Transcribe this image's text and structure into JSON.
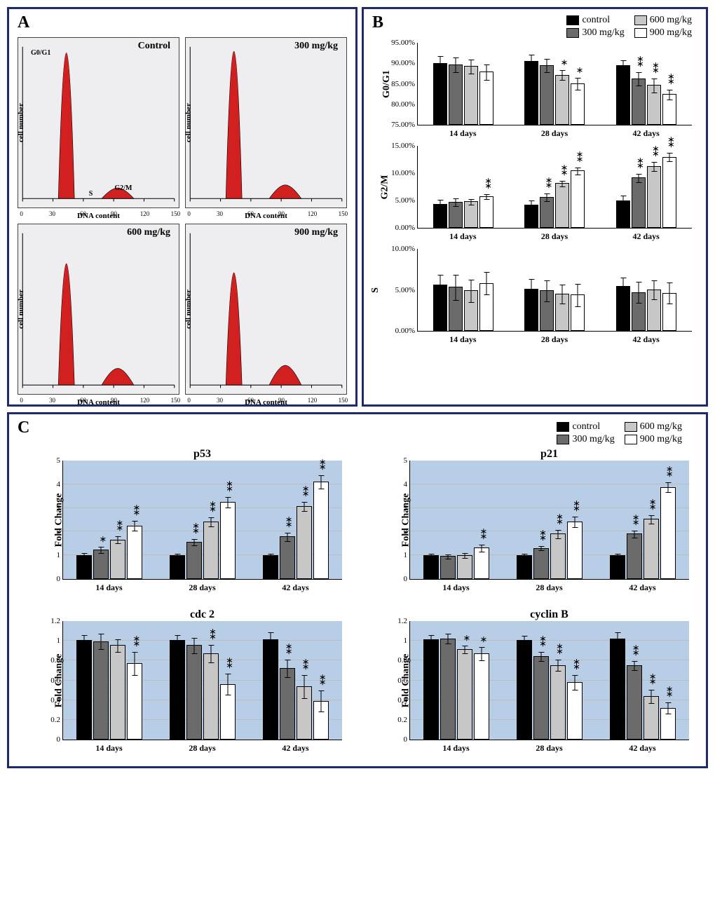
{
  "panelLabels": {
    "A": "A",
    "B": "B",
    "C": "C"
  },
  "colors": {
    "control": "#000000",
    "d300": "#6b6b6b",
    "d600": "#c7c7c7",
    "d900": "#ffffff",
    "panelBorder": "#1f2a6a",
    "histoBg": "#eeeef0",
    "histoFill": "#d22020",
    "blueBg": "#b8cde6",
    "grid": "#bcbcbc"
  },
  "legend": {
    "items": [
      {
        "label": "control",
        "color": "#000000"
      },
      {
        "label": "300 mg/kg",
        "color": "#6b6b6b"
      },
      {
        "label": "600 mg/kg",
        "color": "#c7c7c7"
      },
      {
        "label": "900 mg/kg",
        "color": "#ffffff"
      }
    ]
  },
  "categories": [
    "14 days",
    "28 days",
    "42 days"
  ],
  "histo": {
    "ylabel": "cell number",
    "xlabel": "DNA content",
    "xticks": [
      0,
      30,
      60,
      90,
      120,
      150
    ],
    "peak_labels": {
      "g0g1": "G0/G1",
      "s": "S",
      "g2m": "G2/M"
    },
    "plots": [
      {
        "title": "Control",
        "g0g1_h": 0.96,
        "g2m_h": 0.07
      },
      {
        "title": "300 mg/kg",
        "g0g1_h": 0.97,
        "g2m_h": 0.09
      },
      {
        "title": "600 mg/kg",
        "g0g1_h": 0.8,
        "g2m_h": 0.11
      },
      {
        "title": "900 mg/kg",
        "g0g1_h": 0.74,
        "g2m_h": 0.13
      }
    ]
  },
  "panelB": {
    "charts": [
      {
        "ylabel": "G0/G1",
        "ymin": 75,
        "ymax": 95,
        "ystep": 5,
        "tickFmt": "pct2",
        "series": [
          [
            {
              "v": 90.0,
              "e": 1.8
            },
            {
              "v": 89.6,
              "e": 1.9
            },
            {
              "v": 89.2,
              "e": 1.8
            },
            {
              "v": 87.8,
              "e": 1.9
            }
          ],
          [
            {
              "v": 90.5,
              "e": 1.6
            },
            {
              "v": 89.4,
              "e": 1.7
            },
            {
              "v": 87.1,
              "e": 1.3,
              "sig": "*"
            },
            {
              "v": 85.0,
              "e": 1.6,
              "sig": "*"
            }
          ],
          [
            {
              "v": 89.4,
              "e": 1.4
            },
            {
              "v": 86.2,
              "e": 1.7,
              "sig": "**"
            },
            {
              "v": 84.6,
              "e": 1.8,
              "sig": "**"
            },
            {
              "v": 82.4,
              "e": 1.3,
              "sig": "**"
            }
          ]
        ]
      },
      {
        "ylabel": "G2/M",
        "ymin": 0,
        "ymax": 15,
        "ystep": 5,
        "tickFmt": "pct2",
        "series": [
          [
            {
              "v": 4.3,
              "e": 0.9
            },
            {
              "v": 4.7,
              "e": 0.8
            },
            {
              "v": 4.8,
              "e": 0.6
            },
            {
              "v": 5.7,
              "e": 0.5,
              "sig": "**"
            }
          ],
          [
            {
              "v": 4.2,
              "e": 0.9
            },
            {
              "v": 5.6,
              "e": 0.8,
              "sig": "**"
            },
            {
              "v": 8.1,
              "e": 0.6,
              "sig": "**"
            },
            {
              "v": 10.4,
              "e": 0.7,
              "sig": "**"
            }
          ],
          [
            {
              "v": 5.0,
              "e": 1.0
            },
            {
              "v": 9.1,
              "e": 0.8,
              "sig": "**"
            },
            {
              "v": 11.2,
              "e": 0.9,
              "sig": "**"
            },
            {
              "v": 12.9,
              "e": 0.8,
              "sig": "**"
            }
          ]
        ]
      },
      {
        "ylabel": "S",
        "ymin": 0,
        "ymax": 10,
        "ystep": 5,
        "tickFmt": "pct2",
        "series": [
          [
            {
              "v": 5.6,
              "e": 1.3
            },
            {
              "v": 5.3,
              "e": 1.6
            },
            {
              "v": 4.9,
              "e": 1.4
            },
            {
              "v": 5.8,
              "e": 1.4
            }
          ],
          [
            {
              "v": 5.1,
              "e": 1.3
            },
            {
              "v": 4.9,
              "e": 1.3
            },
            {
              "v": 4.5,
              "e": 1.2
            },
            {
              "v": 4.4,
              "e": 1.4
            }
          ],
          [
            {
              "v": 5.4,
              "e": 1.1
            },
            {
              "v": 4.7,
              "e": 1.3
            },
            {
              "v": 5.0,
              "e": 1.2
            },
            {
              "v": 4.6,
              "e": 1.3
            }
          ]
        ]
      }
    ]
  },
  "panelC": {
    "ylabel": "Fold Change",
    "charts": [
      {
        "title": "p53",
        "ymin": 0,
        "ymax": 5,
        "ystep": 1,
        "series": [
          [
            {
              "v": 1.0,
              "e": 0.12
            },
            {
              "v": 1.24,
              "e": 0.14,
              "sig": "*"
            },
            {
              "v": 1.66,
              "e": 0.15,
              "sig": "**"
            },
            {
              "v": 2.25,
              "e": 0.22,
              "sig": "**"
            }
          ],
          [
            {
              "v": 1.0,
              "e": 0.1
            },
            {
              "v": 1.56,
              "e": 0.16,
              "sig": "**"
            },
            {
              "v": 2.42,
              "e": 0.2,
              "sig": "**"
            },
            {
              "v": 3.24,
              "e": 0.24,
              "sig": "**"
            }
          ],
          [
            {
              "v": 1.0,
              "e": 0.1
            },
            {
              "v": 1.78,
              "e": 0.18,
              "sig": "**"
            },
            {
              "v": 3.06,
              "e": 0.22,
              "sig": "**"
            },
            {
              "v": 4.08,
              "e": 0.3,
              "sig": "**"
            }
          ]
        ]
      },
      {
        "title": "p21",
        "ymin": 0,
        "ymax": 5,
        "ystep": 1,
        "series": [
          [
            {
              "v": 1.0,
              "e": 0.1
            },
            {
              "v": 0.96,
              "e": 0.1
            },
            {
              "v": 1.0,
              "e": 0.12
            },
            {
              "v": 1.32,
              "e": 0.16,
              "sig": "**"
            }
          ],
          [
            {
              "v": 1.0,
              "e": 0.1
            },
            {
              "v": 1.3,
              "e": 0.1,
              "sig": "**"
            },
            {
              "v": 1.9,
              "e": 0.18,
              "sig": "**"
            },
            {
              "v": 2.42,
              "e": 0.24,
              "sig": "**"
            }
          ],
          [
            {
              "v": 1.0,
              "e": 0.1
            },
            {
              "v": 1.9,
              "e": 0.16,
              "sig": "**"
            },
            {
              "v": 2.52,
              "e": 0.2,
              "sig": "**"
            },
            {
              "v": 3.86,
              "e": 0.22,
              "sig": "**"
            }
          ]
        ]
      },
      {
        "title": "cdc 2",
        "ymin": 0,
        "ymax": 1.2,
        "ystep": 0.2,
        "series": [
          [
            {
              "v": 1.0,
              "e": 0.06
            },
            {
              "v": 0.99,
              "e": 0.08
            },
            {
              "v": 0.95,
              "e": 0.07
            },
            {
              "v": 0.77,
              "e": 0.12,
              "sig": "**"
            }
          ],
          [
            {
              "v": 1.0,
              "e": 0.06
            },
            {
              "v": 0.95,
              "e": 0.08
            },
            {
              "v": 0.87,
              "e": 0.09,
              "sig": "**"
            },
            {
              "v": 0.56,
              "e": 0.11,
              "sig": "**"
            }
          ],
          [
            {
              "v": 1.01,
              "e": 0.08
            },
            {
              "v": 0.72,
              "e": 0.09,
              "sig": "**"
            },
            {
              "v": 0.54,
              "e": 0.12,
              "sig": "**"
            },
            {
              "v": 0.39,
              "e": 0.11,
              "sig": "**"
            }
          ]
        ]
      },
      {
        "title": "cyclin B",
        "ymin": 0,
        "ymax": 1.2,
        "ystep": 0.2,
        "series": [
          [
            {
              "v": 1.01,
              "e": 0.05
            },
            {
              "v": 1.02,
              "e": 0.05
            },
            {
              "v": 0.91,
              "e": 0.04,
              "sig": "*"
            },
            {
              "v": 0.87,
              "e": 0.07,
              "sig": "*"
            }
          ],
          [
            {
              "v": 1.0,
              "e": 0.05
            },
            {
              "v": 0.84,
              "e": 0.05,
              "sig": "**"
            },
            {
              "v": 0.75,
              "e": 0.06,
              "sig": "**"
            },
            {
              "v": 0.58,
              "e": 0.08,
              "sig": "**"
            }
          ],
          [
            {
              "v": 1.02,
              "e": 0.07
            },
            {
              "v": 0.75,
              "e": 0.05,
              "sig": "**"
            },
            {
              "v": 0.44,
              "e": 0.07,
              "sig": "**"
            },
            {
              "v": 0.32,
              "e": 0.06,
              "sig": "**"
            }
          ]
        ]
      }
    ]
  }
}
